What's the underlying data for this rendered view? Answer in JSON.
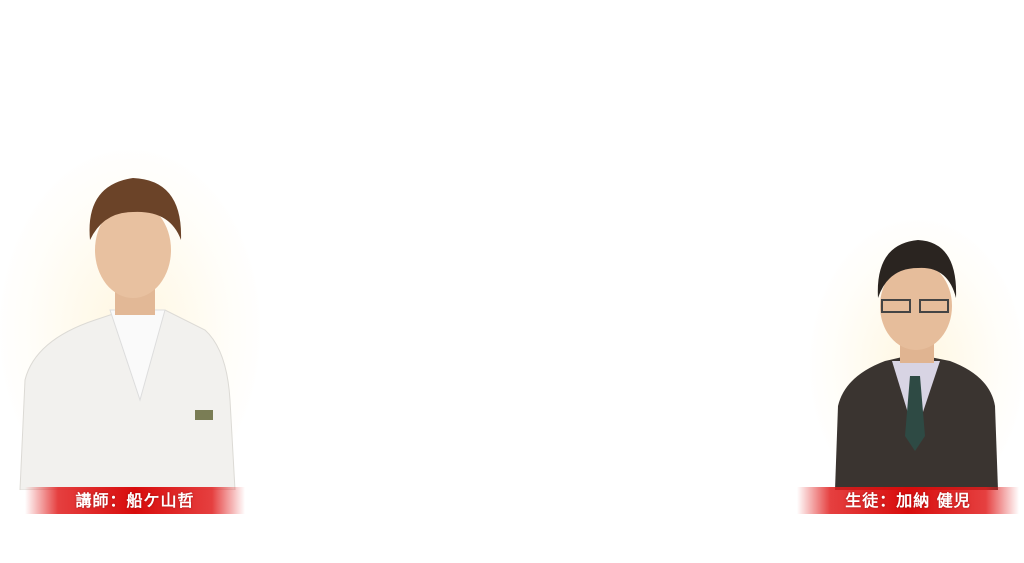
{
  "teacher": {
    "label": "講師：船ケ山哲",
    "icon": "teacher-photo"
  },
  "student": {
    "label": "生徒：加納 健児",
    "icon": "student-photo"
  },
  "colors": {
    "label_bg": "#d80c0c",
    "label_text": "#ffffff"
  }
}
